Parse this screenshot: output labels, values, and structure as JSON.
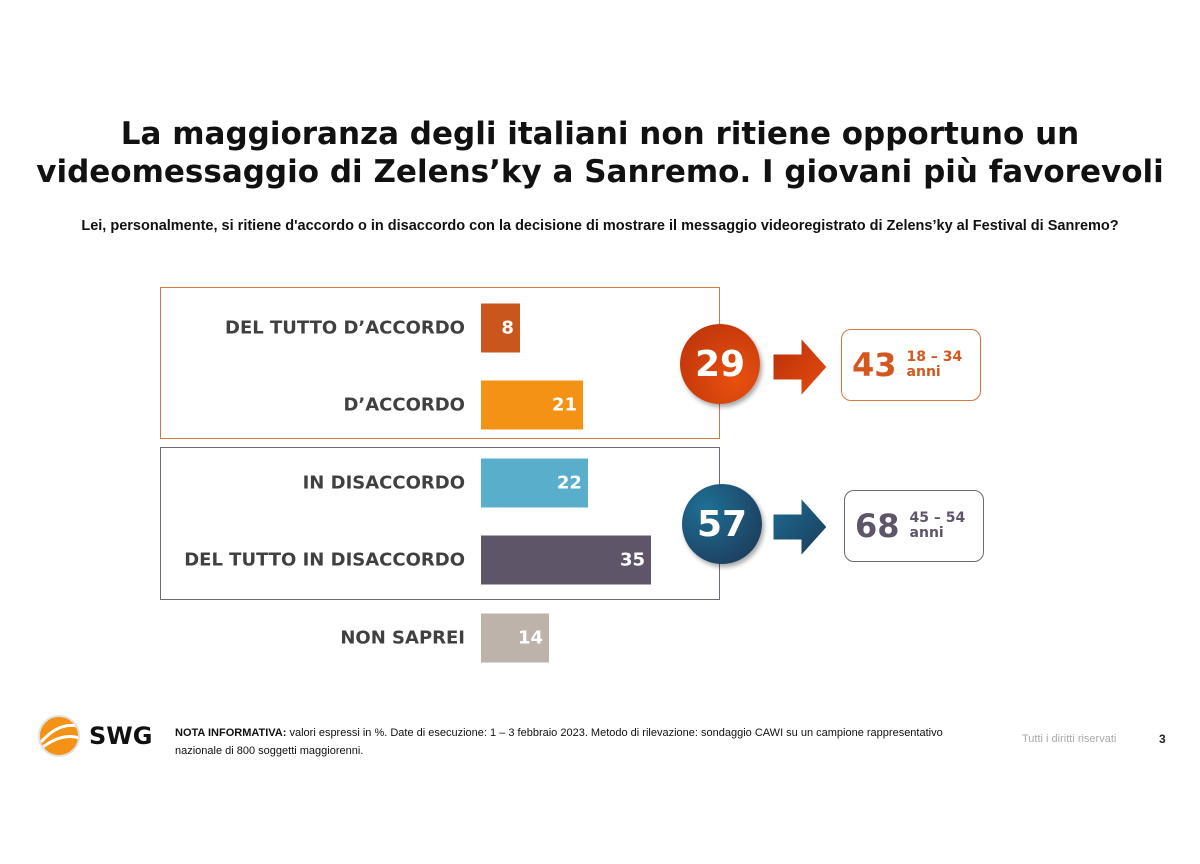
{
  "title_line1": "La maggioranza degli italiani non ritiene opportuno un",
  "title_line2": "videomessaggio di Zelens’ky a Sanremo. I giovani più favorevoli",
  "subtitle": "Lei, personalmente, si ritiene d'accordo o in disaccordo con la decisione di mostrare il messaggio videoregistrato di Zelens’ky al Festival di Sanremo?",
  "chart_data": {
    "type": "bar",
    "orientation": "horizontal",
    "categories": [
      "DEL TUTTO D’ACCORDO",
      "D’ACCORDO",
      "IN DISACCORDO",
      "DEL TUTTO IN DISACCORDO",
      "NON SAPREI"
    ],
    "values": [
      8,
      21,
      22,
      35,
      14
    ],
    "value_labels": [
      "8",
      "21",
      "22",
      "35",
      "14"
    ],
    "colors": [
      "#c9561c",
      "#f39215",
      "#58aecb",
      "#5f5568",
      "#bdb3ab"
    ],
    "unit": "%"
  },
  "summary": {
    "agree": {
      "total": "29",
      "highlight": "43",
      "age": "18 – 34",
      "age_unit": "anni",
      "color": "#d4581e"
    },
    "disagree": {
      "total": "57",
      "highlight": "68",
      "age": "45 – 54",
      "age_unit": "anni",
      "color": "#5f5568"
    }
  },
  "footer": {
    "logo_text": "SWG",
    "note_label": "NOTA INFORMATIVA:",
    "note_text": " valori espressi in %. Date di esecuzione: 1 – 3 febbraio 2023. Metodo di rilevazione: sondaggio CAWI su un campione rappresentativo nazionale di 800 soggetti maggiorenni.",
    "rights": "Tutti i diritti riservati",
    "page_number": "3"
  }
}
